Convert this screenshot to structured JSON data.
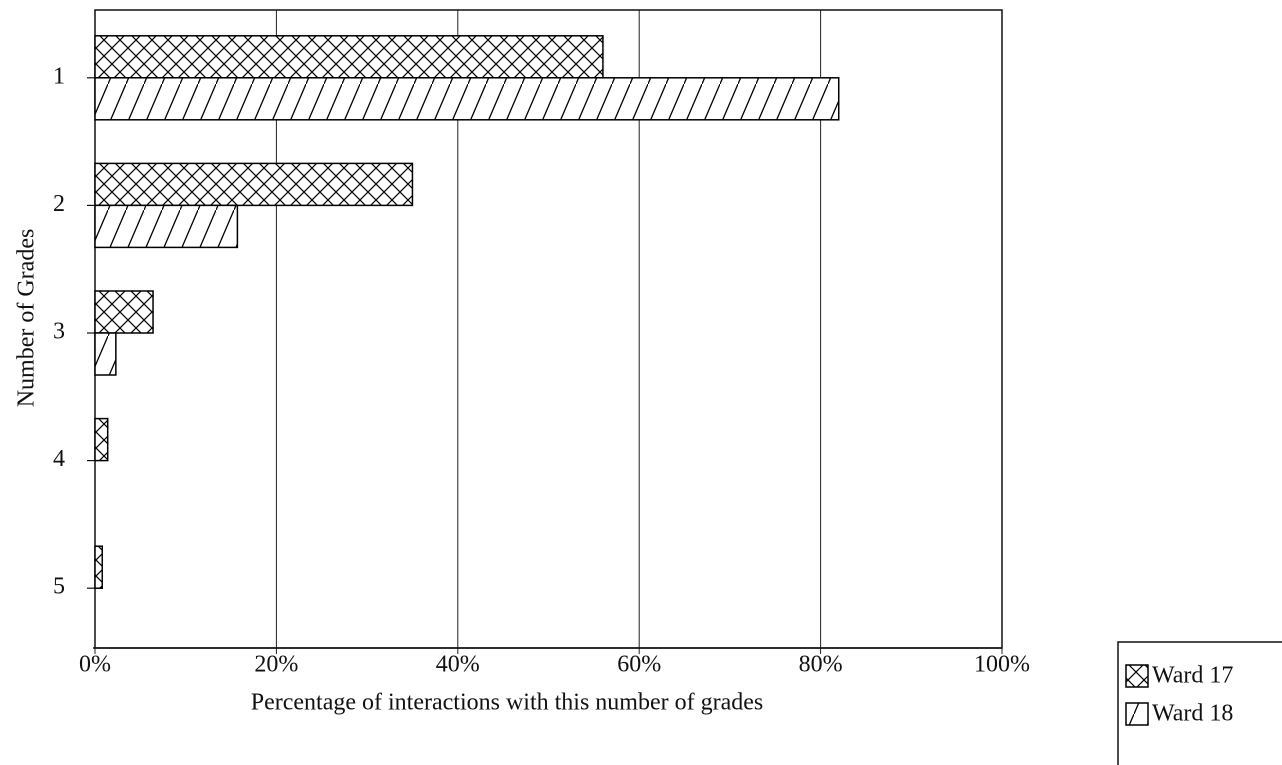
{
  "chart_data": {
    "type": "hbar",
    "xlabel": "Percentage of interactions with this number of grades",
    "ylabel": "Number of Grades",
    "categories": [
      "1",
      "2",
      "3",
      "4",
      "5"
    ],
    "series": [
      {
        "name": "Ward 17",
        "color": "#000000",
        "pattern": "crosshatch",
        "values": [
          56,
          35,
          6.4,
          1.4,
          0.8
        ]
      },
      {
        "name": "Ward 18",
        "color": "#000000",
        "pattern": "diagonal",
        "values": [
          82,
          15.7,
          2.3,
          0,
          0
        ]
      }
    ],
    "xlim": [
      0,
      100
    ],
    "xticks": [
      {
        "value": 0,
        "label": "0%"
      },
      {
        "value": 20,
        "label": "20%"
      },
      {
        "value": 40,
        "label": "40%"
      },
      {
        "value": 60,
        "label": "60%"
      },
      {
        "value": 80,
        "label": "80%"
      },
      {
        "value": 100,
        "label": "100%"
      }
    ],
    "grid": true,
    "legend": "lower right"
  }
}
